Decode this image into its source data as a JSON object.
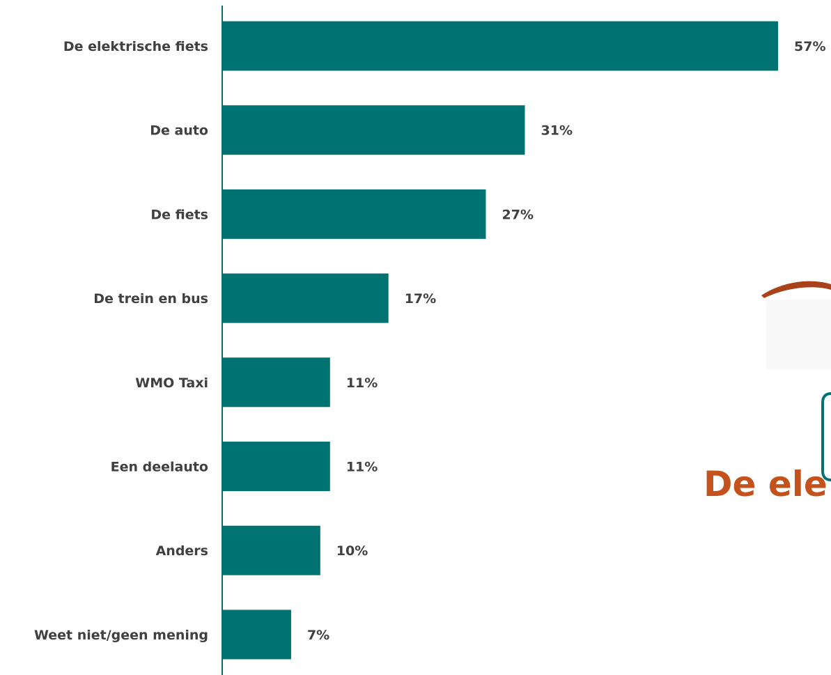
{
  "chart_data": {
    "type": "bar",
    "orientation": "horizontal",
    "categories": [
      "De elektrische fiets",
      "De auto",
      "De fiets",
      "De trein en bus",
      "WMO Taxi",
      "Een deelauto",
      "Anders",
      "Weet niet/geen mening"
    ],
    "values": [
      57,
      31,
      27,
      17,
      11,
      11,
      10,
      7
    ],
    "value_labels": [
      "57%",
      "31%",
      "27%",
      "17%",
      "11%",
      "11%",
      "10%",
      "7%"
    ],
    "unit": "%",
    "xlim": [
      0,
      57
    ],
    "grid": false,
    "legend": "none",
    "colors": {
      "bar": "#007272",
      "axis": "#007272",
      "label_text": "#404040",
      "callout_text": "#c4521c",
      "callout_swoosh": "#a8421a",
      "callout_box": "#007272"
    }
  },
  "callout": {
    "text": "De ele"
  }
}
